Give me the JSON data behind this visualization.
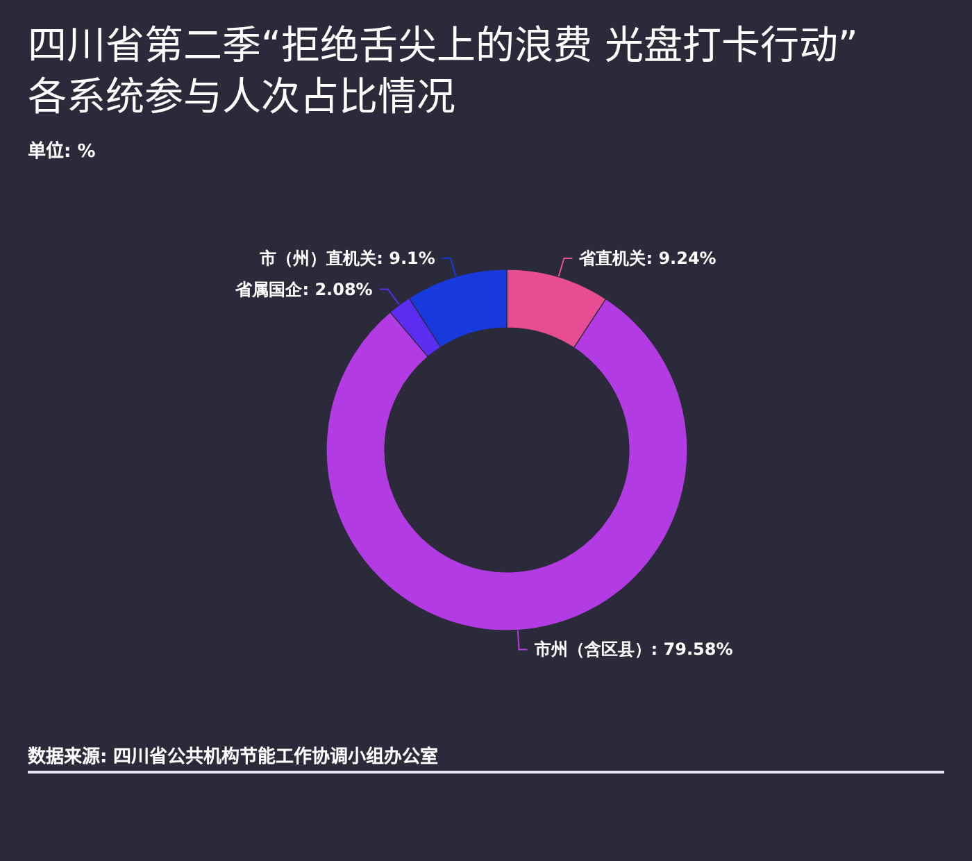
{
  "chart_data": {
    "type": "donut",
    "title": "四川省第二季“拒绝舌尖上的浪费 光盘打卡行动”各系统参与人次占比情况",
    "subtitle": "单位: %",
    "categories": [
      "省直机关",
      "市州（含区县）",
      "省属国企",
      "市（州）直机关"
    ],
    "values": [
      9.24,
      79.58,
      2.08,
      9.1
    ],
    "colors": [
      "#e64d93",
      "#b23be3",
      "#5b2df0",
      "#1839dc"
    ],
    "value_labels": [
      "9.24%",
      "79.58%",
      "2.08%",
      "9.1%"
    ],
    "annotations": [
      "数据来源: 四川省公共机构节能工作协调小组办公室"
    ],
    "legend": false
  }
}
